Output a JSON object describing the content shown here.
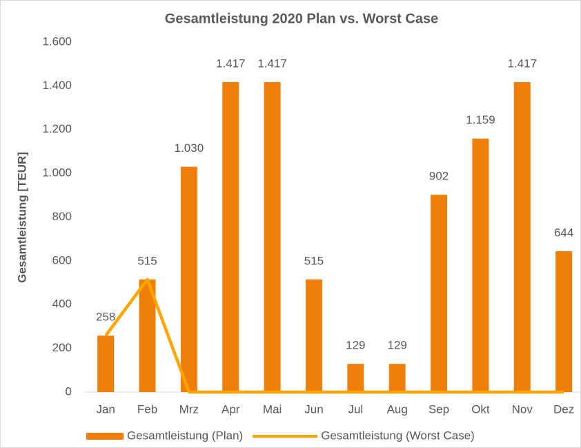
{
  "chart_data": {
    "type": "bar",
    "title": "Gesamtleistung 2020 Plan vs. Worst Case",
    "y_label": "Gesamtleistung [TEUR]",
    "categories": [
      "Jan",
      "Feb",
      "Mrz",
      "Apr",
      "Mai",
      "Jun",
      "Jul",
      "Aug",
      "Sep",
      "Okt",
      "Nov",
      "Dez"
    ],
    "series": [
      {
        "name": "Gesamtleistung (Plan)",
        "type": "bar",
        "color": "#f07f09",
        "values": [
          258,
          515,
          1030,
          1417,
          1417,
          515,
          129,
          129,
          902,
          1159,
          1417,
          644
        ],
        "value_labels": [
          "258",
          "515",
          "1.030",
          "1.417",
          "1.417",
          "515",
          "129",
          "129",
          "902",
          "1.159",
          "1.417",
          "644"
        ]
      },
      {
        "name": "Gesamtleistung (Worst Case)",
        "type": "line",
        "color": "#ffa500",
        "values": [
          258,
          515,
          0,
          0,
          0,
          0,
          0,
          0,
          0,
          0,
          0,
          0
        ]
      }
    ],
    "ylim": [
      0,
      1600
    ],
    "yticks": [
      0,
      200,
      400,
      600,
      800,
      {
        "value": 1000,
        "label": "1.000"
      },
      {
        "value": 1200,
        "label": "1.200"
      },
      {
        "value": 1400,
        "label": "1.400"
      },
      {
        "value": 1600,
        "label": "1.600"
      }
    ],
    "legend": "bottom"
  }
}
